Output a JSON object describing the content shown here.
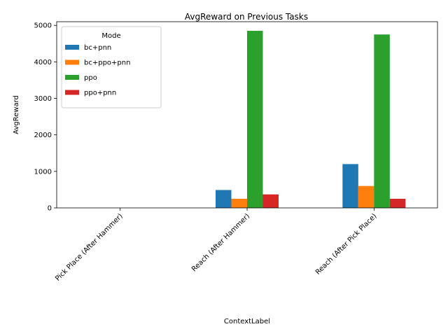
{
  "chart_data": {
    "type": "bar",
    "title": "AvgReward on Previous Tasks",
    "xlabel": "ContextLabel",
    "ylabel": "AvgReward",
    "ylim": [
      0,
      5100
    ],
    "yticks": [
      0,
      1000,
      2000,
      3000,
      4000,
      5000
    ],
    "grid": false,
    "legend": {
      "title": "Mode",
      "placement": "upper-left"
    },
    "categories": [
      "Pick Place (After Hammer)",
      "Reach (After Hammer)",
      "Reach (After Pick Place)"
    ],
    "series": [
      {
        "name": "bc+pnn",
        "color": "#1f77b4",
        "values": [
          0,
          490,
          1200
        ]
      },
      {
        "name": "bc+ppo+pnn",
        "color": "#ff7f0e",
        "values": [
          0,
          250,
          600
        ]
      },
      {
        "name": "ppo",
        "color": "#2ca02c",
        "values": [
          0,
          4850,
          4750
        ]
      },
      {
        "name": "ppo+pnn",
        "color": "#d62728",
        "values": [
          0,
          370,
          250
        ]
      }
    ]
  }
}
